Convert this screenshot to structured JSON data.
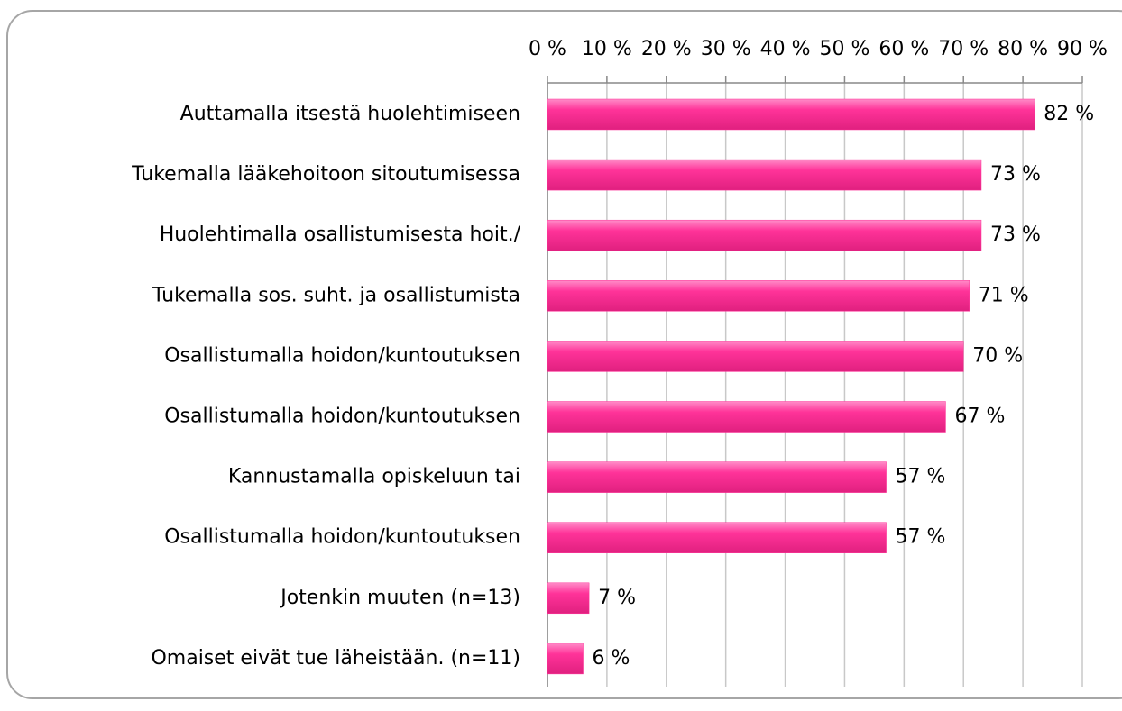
{
  "chart_data": {
    "type": "barh",
    "categories": [
      "Auttamalla itsestä huolehtimiseen",
      "Tukemalla lääkehoitoon sitoutumisessa",
      "Huolehtimalla osallistumisesta hoit./",
      "Tukemalla sos. suht. ja osallistumista",
      "Osallistumalla hoidon/kuntoutuksen",
      "Osallistumalla hoidon/kuntoutuksen",
      "Kannustamalla opiskeluun tai",
      "Osallistumalla hoidon/kuntoutuksen",
      "Jotenkin muuten (n=13)",
      "Omaiset eivät tue läheistään. (n=11)"
    ],
    "values": [
      82,
      73,
      73,
      71,
      70,
      67,
      57,
      57,
      7,
      6
    ],
    "value_labels": [
      "82 %",
      "73 %",
      "73 %",
      "71 %",
      "70 %",
      "67 %",
      "57 %",
      "57 %",
      "7 %",
      "6 %"
    ],
    "color": "#ff3399",
    "xlim": [
      0,
      90
    ],
    "xticks": [
      {
        "value": 0,
        "label": "0 %"
      },
      {
        "value": 10,
        "label": "10 %"
      },
      {
        "value": 20,
        "label": "20 %"
      },
      {
        "value": 30,
        "label": "30 %"
      },
      {
        "value": 40,
        "label": "40 %"
      },
      {
        "value": 50,
        "label": "50 %"
      },
      {
        "value": 60,
        "label": "60 %"
      },
      {
        "value": 70,
        "label": "70 %"
      },
      {
        "value": 80,
        "label": "80 %"
      },
      {
        "value": 90,
        "label": "90 %"
      }
    ],
    "grid": true
  }
}
